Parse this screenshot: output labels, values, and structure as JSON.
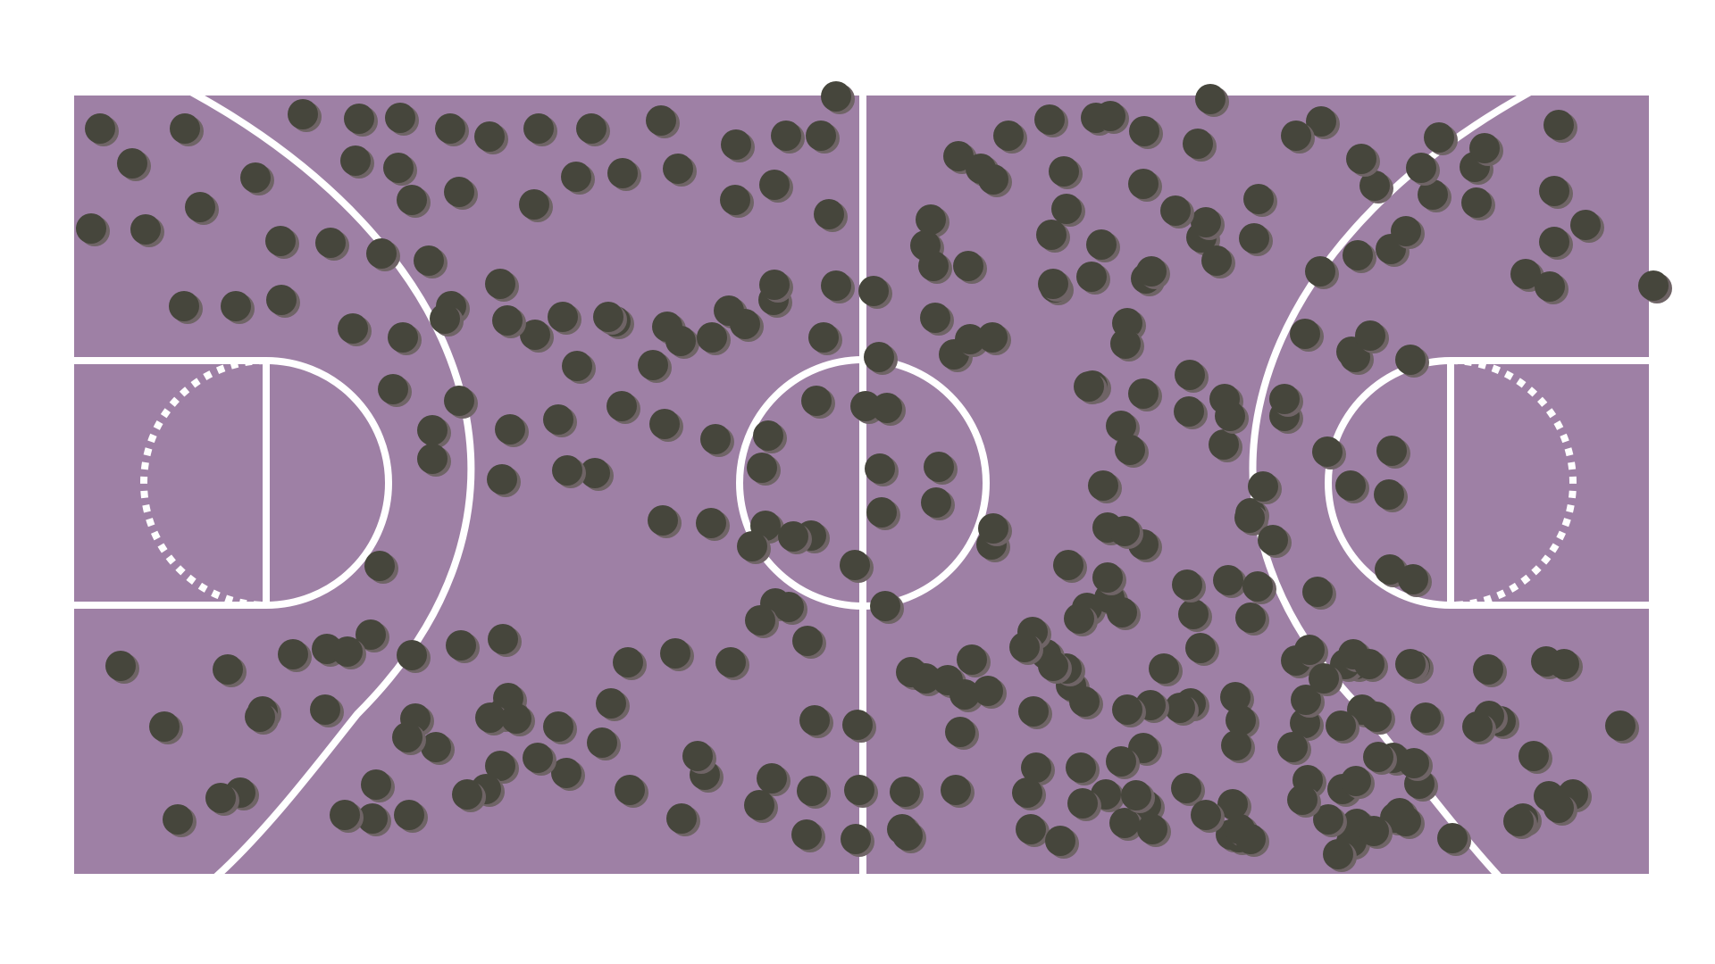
{
  "colors": {
    "background": "#ffffff",
    "court": "#9e80a5",
    "lines": "#ffffff",
    "dot": "#46463c",
    "dot_shadow": "#6f6466"
  },
  "court": {
    "sport": "basketball",
    "orientation": "horizontal",
    "free_throw_circle_far_half_style": "dashed",
    "players_shown_as": "dark-dots"
  }
}
